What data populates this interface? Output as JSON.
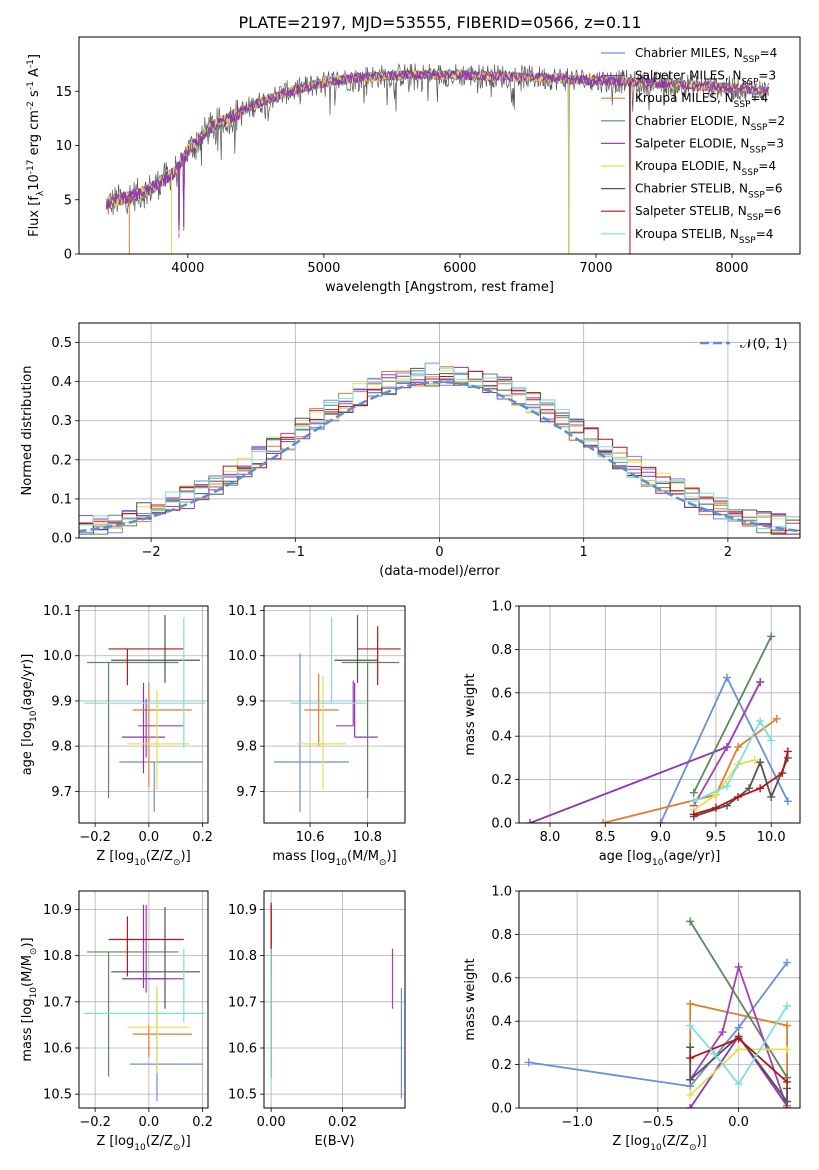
{
  "title": "PLATE=2197, MJD=53555, FIBERID=0566, z=0.11",
  "series": [
    {
      "name": "Chabrier MILES, N$_{SSP}$=4",
      "label_main": "Chabrier MILES, N",
      "label_sub": "SSP",
      "label_tail": "=4",
      "color": "#6b8fd8"
    },
    {
      "name": "Salpeter MILES, N$_{SSP}$=3",
      "label_main": "Salpeter MILES, N",
      "label_sub": "SSP",
      "label_tail": "=3",
      "color": "#8e35b5"
    },
    {
      "name": "Kroupa MILES, N$_{SSP}$=4",
      "label_main": "Kroupa MILES, N",
      "label_sub": "SSP",
      "label_tail": "=4",
      "color": "#e07e2e"
    },
    {
      "name": "Chabrier ELODIE, N$_{SSP}$=2",
      "label_main": "Chabrier ELODIE, N",
      "label_sub": "SSP",
      "label_tail": "=2",
      "color": "#5c8a5c"
    },
    {
      "name": "Salpeter ELODIE, N$_{SSP}$=3",
      "label_main": "Salpeter ELODIE, N",
      "label_sub": "SSP",
      "label_tail": "=3",
      "color": "#a33fb8"
    },
    {
      "name": "Kroupa ELODIE, N$_{SSP}$=4",
      "label_main": "Kroupa ELODIE, N",
      "label_sub": "SSP",
      "label_tail": "=4",
      "color": "#e0e050"
    },
    {
      "name": "Chabrier STELIB, N$_{SSP}$=6",
      "label_main": "Chabrier STELIB, N",
      "label_sub": "SSP",
      "label_tail": "=6",
      "color": "#555555"
    },
    {
      "name": "Salpeter STELIB, N$_{SSP}$=6",
      "label_main": "Salpeter STELIB, N",
      "label_sub": "SSP",
      "label_tail": "=6",
      "color": "#b81414"
    },
    {
      "name": "Kroupa STELIB, N$_{SSP}$=4",
      "label_main": "Kroupa STELIB, N",
      "label_sub": "SSP",
      "label_tail": "=4",
      "color": "#7fdede"
    }
  ],
  "chart_data": [
    {
      "type": "line",
      "panel": "spectrum",
      "xlabel": "wavelength [Angstrom, rest frame]",
      "ylabel": "Flux [f$_\\lambda$10$^{-17}$ erg cm$^{-2}$ s$^{-1}$ A$^{-1}$]",
      "xlim": [
        3200,
        8500
      ],
      "ylim": [
        0,
        20
      ],
      "xticks": [
        4000,
        5000,
        6000,
        7000,
        8000
      ],
      "yticks": [
        0,
        5,
        10,
        15
      ],
      "grid": false,
      "legend": "top-right",
      "continuum": {
        "x": [
          3400,
          3500,
          3700,
          3900,
          4000,
          4150,
          4300,
          4500,
          4700,
          4900,
          5100,
          5300,
          5600,
          6000,
          6500,
          7000,
          7500,
          8000,
          8270
        ],
        "y": [
          4.6,
          5.0,
          5.8,
          7.5,
          9.5,
          11.5,
          12.5,
          13.8,
          14.8,
          15.5,
          16.0,
          16.3,
          16.5,
          16.5,
          16.3,
          16.0,
          15.7,
          15.3,
          15.0
        ]
      },
      "absorption_dips": [
        {
          "x": 3934,
          "y": 1.5
        },
        {
          "x": 3969,
          "y": 2.0
        },
        {
          "x": 6800,
          "y": 0
        },
        {
          "x": 7250,
          "y": 0
        }
      ],
      "flux_sampling_step": 5
    },
    {
      "type": "bar",
      "panel": "residual_histogram",
      "xlabel": "(data-model)/error",
      "ylabel": "Normed distribution",
      "xlim": [
        -2.5,
        2.5
      ],
      "ylim": [
        0,
        0.55
      ],
      "xticks": [
        -2,
        -1,
        0,
        1,
        2
      ],
      "yticks": [
        0.0,
        0.1,
        0.2,
        0.3,
        0.4,
        0.5
      ],
      "grid": true,
      "bin_width": 0.1,
      "reference_curve": "$\\mathcal{N}(0,1)$",
      "reference_label": "𝒩(0, 1)",
      "reference_color": "#5b8ed6",
      "legend": "top-right"
    },
    {
      "type": "scatter",
      "panel": "age_vs_Z",
      "xlabel": "Z [log$_{10}$(Z/Z$_\\odot$)]",
      "ylabel": "age  [log$_{10}$(age/yr)]",
      "xlim": [
        -0.26,
        0.22
      ],
      "ylim": [
        9.63,
        10.11
      ],
      "xticks": [
        -0.2,
        0.0,
        0.2
      ],
      "yticks": [
        9.7,
        9.8,
        9.9,
        10.0,
        10.1
      ],
      "grid": true,
      "points": [
        {
          "x": 0.02,
          "y": 9.765,
          "xerr": [
            0.13,
            0.18
          ],
          "yerr": [
            0.11,
            0.0
          ]
        },
        {
          "x": -0.02,
          "y": 9.82,
          "xerr": [
            0.08,
            0.08
          ],
          "yerr": [
            0.08,
            0.12
          ]
        },
        {
          "x": 0.0,
          "y": 9.88,
          "xerr": [
            0.06,
            0.16
          ],
          "yerr": [
            0.17,
            0.06
          ]
        },
        {
          "x": -0.15,
          "y": 9.985,
          "xerr": [
            0.08,
            0.26
          ],
          "yerr": [
            0.3,
            0.0
          ]
        },
        {
          "x": -0.01,
          "y": 9.845,
          "xerr": [
            0.03,
            0.14
          ],
          "yerr": [
            0.07,
            0.06
          ]
        },
        {
          "x": 0.03,
          "y": 9.805,
          "xerr": [
            0.11,
            0.12
          ],
          "yerr": [
            0.1,
            0.12
          ]
        },
        {
          "x": 0.06,
          "y": 9.99,
          "xerr": [
            0.2,
            0.13
          ],
          "yerr": [
            0.05,
            0.1
          ]
        },
        {
          "x": -0.08,
          "y": 10.015,
          "xerr": [
            0.07,
            0.21
          ],
          "yerr": [
            0.08,
            0.0
          ]
        },
        {
          "x": 0.13,
          "y": 9.895,
          "xerr": [
            0.37,
            0.08
          ],
          "yerr": [
            0.1,
            0.19
          ]
        }
      ]
    },
    {
      "type": "scatter",
      "panel": "age_vs_mass",
      "xlabel": "mass [log$_{10}$(M/M$_\\odot$)]",
      "ylabel": "",
      "xlim": [
        10.44,
        10.93
      ],
      "ylim": [
        9.63,
        10.11
      ],
      "xticks": [
        10.6,
        10.8
      ],
      "yticks": [
        9.7,
        9.8,
        9.9,
        10.0,
        10.1
      ],
      "grid": true,
      "points": [
        {
          "x": 10.565,
          "y": 9.765,
          "xerr": [
            0.09,
            0.17
          ],
          "yerr": [
            0.11,
            0.24
          ]
        },
        {
          "x": 10.755,
          "y": 9.82,
          "xerr": [
            0.0,
            0.08
          ],
          "yerr": [
            0.0,
            0.12
          ]
        },
        {
          "x": 10.63,
          "y": 9.88,
          "xerr": [
            0.05,
            0.07
          ],
          "yerr": [
            0.08,
            0.08
          ]
        },
        {
          "x": 10.8,
          "y": 9.985,
          "xerr": [
            0.09,
            0.11
          ],
          "yerr": [
            0.3,
            0.0
          ]
        },
        {
          "x": 10.75,
          "y": 9.845,
          "xerr": [
            0.06,
            0.0
          ],
          "yerr": [
            0.0,
            0.1
          ]
        },
        {
          "x": 10.645,
          "y": 9.805,
          "xerr": [
            0.09,
            0.08
          ],
          "yerr": [
            0.1,
            0.15
          ]
        },
        {
          "x": 10.765,
          "y": 9.99,
          "xerr": [
            0.08,
            0.07
          ],
          "yerr": [
            0.05,
            0.1
          ]
        },
        {
          "x": 10.835,
          "y": 10.015,
          "xerr": [
            0.07,
            0.08
          ],
          "yerr": [
            0.08,
            0.05
          ]
        },
        {
          "x": 10.675,
          "y": 9.895,
          "xerr": [
            0.14,
            0.12
          ],
          "yerr": [
            0.0,
            0.19
          ]
        }
      ]
    },
    {
      "type": "line",
      "panel": "mass_weight_vs_age",
      "xlabel": "age  [log$_{10}$(age/yr)]",
      "ylabel": "mass weight",
      "xlim": [
        7.72,
        10.26
      ],
      "ylim": [
        0,
        1
      ],
      "xticks": [
        8.0,
        8.5,
        9.0,
        9.5,
        10.0
      ],
      "yticks": [
        0.0,
        0.2,
        0.4,
        0.6,
        0.8,
        1.0
      ],
      "grid": true,
      "series_points": [
        {
          "x": [
            9.0,
            9.6,
            10.15
          ],
          "y": [
            0.0,
            0.67,
            0.1
          ]
        },
        {
          "x": [
            7.82,
            9.6,
            9.9
          ],
          "y": [
            0.0,
            0.35,
            0.65
          ]
        },
        {
          "x": [
            8.48,
            9.5,
            9.7,
            10.05
          ],
          "y": [
            0.0,
            0.13,
            0.35,
            0.48
          ]
        },
        {
          "x": [
            9.3,
            10.0
          ],
          "y": [
            0.14,
            0.86
          ]
        },
        {
          "x": [
            9.3,
            9.6,
            9.9
          ],
          "y": [
            0.08,
            0.35,
            0.65
          ]
        },
        {
          "x": [
            9.3,
            9.5,
            9.7,
            9.85
          ],
          "y": [
            0.06,
            0.13,
            0.27,
            0.29
          ]
        },
        {
          "x": [
            9.3,
            9.6,
            9.8,
            9.9,
            10.0,
            10.15
          ],
          "y": [
            0.03,
            0.08,
            0.16,
            0.28,
            0.12,
            0.3
          ]
        },
        {
          "x": [
            9.3,
            9.5,
            9.7,
            9.9,
            10.1,
            10.15
          ],
          "y": [
            0.04,
            0.07,
            0.12,
            0.16,
            0.23,
            0.33
          ]
        },
        {
          "x": [
            9.3,
            9.6,
            9.9,
            10.0
          ],
          "y": [
            0.1,
            0.17,
            0.47,
            0.38
          ]
        }
      ]
    },
    {
      "type": "scatter",
      "panel": "mass_vs_Z",
      "xlabel": "Z [log$_{10}$(Z/Z$_\\odot$)]",
      "ylabel": "mass [log$_{10}$(M/M$_\\odot$)]",
      "xlim": [
        -0.26,
        0.22
      ],
      "ylim": [
        10.47,
        10.94
      ],
      "xticks": [
        -0.2,
        0.0,
        0.2
      ],
      "yticks": [
        10.5,
        10.6,
        10.7,
        10.8,
        10.9
      ],
      "grid": true,
      "points": [
        {
          "x": 0.03,
          "y": 10.565,
          "xerr": [
            0.1,
            0.17
          ],
          "yerr": [
            0.08,
            0.16
          ]
        },
        {
          "x": -0.02,
          "y": 10.75,
          "xerr": [
            0.08,
            0.08
          ],
          "yerr": [
            0.02,
            0.16
          ]
        },
        {
          "x": 0.0,
          "y": 10.63,
          "xerr": [
            0.06,
            0.16
          ],
          "yerr": [
            0.05,
            0.02
          ]
        },
        {
          "x": -0.15,
          "y": 10.808,
          "xerr": [
            0.08,
            0.26
          ],
          "yerr": [
            0.27,
            0.0
          ]
        },
        {
          "x": -0.01,
          "y": 10.75,
          "xerr": [
            0.03,
            0.14
          ],
          "yerr": [
            0.03,
            0.16
          ]
        },
        {
          "x": 0.03,
          "y": 10.645,
          "xerr": [
            0.11,
            0.12
          ],
          "yerr": [
            0.1,
            0.09
          ]
        },
        {
          "x": 0.06,
          "y": 10.765,
          "xerr": [
            0.2,
            0.13
          ],
          "yerr": [
            0.08,
            0.14
          ]
        },
        {
          "x": -0.08,
          "y": 10.835,
          "xerr": [
            0.07,
            0.21
          ],
          "yerr": [
            0.08,
            0.05
          ]
        },
        {
          "x": 0.13,
          "y": 10.675,
          "xerr": [
            0.37,
            0.08
          ],
          "yerr": [
            0.02,
            0.14
          ]
        }
      ]
    },
    {
      "type": "scatter",
      "panel": "mass_vs_EBV",
      "xlabel": "E(B-V)",
      "ylabel": "",
      "xlim": [
        -0.002,
        0.0375
      ],
      "ylim": [
        10.47,
        10.94
      ],
      "xticks": [
        0.0,
        0.02
      ],
      "yticks": [
        10.5,
        10.6,
        10.7,
        10.8,
        10.9
      ],
      "grid": true,
      "points": [
        {
          "x": 0.0365,
          "y": 10.6,
          "yerr": [
            0.11,
            0.13
          ]
        },
        {
          "x": 0.0,
          "y": 10.75,
          "yerr": [
            0.2,
            0.16
          ]
        },
        {
          "x": 0.0,
          "y": 10.75,
          "yerr": [
            0.2,
            0.16
          ]
        },
        {
          "x": 0.0,
          "y": 10.808,
          "yerr": [
            0.27,
            0.0
          ]
        },
        {
          "x": 0.034,
          "y": 10.745,
          "yerr": [
            0.06,
            0.07
          ]
        },
        {
          "x": 0.0,
          "y": 10.645,
          "yerr": [
            0.1,
            0.09
          ]
        },
        {
          "x": 0.0,
          "y": 10.765,
          "yerr": [
            0.23,
            0.14
          ]
        },
        {
          "x": 0.0,
          "y": 10.835,
          "yerr": [
            0.08,
            0.08
          ]
        },
        {
          "x": 0.0,
          "y": 10.675,
          "yerr": [
            0.15,
            0.14
          ]
        }
      ]
    },
    {
      "type": "line",
      "panel": "mass_weight_vs_Z",
      "xlabel": "Z [log$_{10}$(Z/Z$_\\odot$)]",
      "ylabel": "mass weight",
      "xlim": [
        -1.36,
        0.38
      ],
      "ylim": [
        0,
        1
      ],
      "xticks": [
        -1.0,
        -0.5,
        0.0
      ],
      "yticks": [
        0.0,
        0.2,
        0.4,
        0.6,
        0.8,
        1.0
      ],
      "grid": true,
      "series_points": [
        {
          "x": [
            -1.3,
            -0.3,
            0.0,
            0.3
          ],
          "y": [
            0.21,
            0.1,
            0.37,
            0.67
          ]
        },
        {
          "x": [
            -0.3,
            0.0,
            0.3
          ],
          "y": [
            0.0,
            0.33,
            0.01
          ]
        },
        {
          "x": [
            -0.3,
            -0.3,
            0.3,
            0.3
          ],
          "y": [
            0.13,
            0.48,
            0.38,
            0.01
          ]
        },
        {
          "x": [
            -0.3,
            0.3
          ],
          "y": [
            0.86,
            0.14
          ]
        },
        {
          "x": [
            -0.3,
            -0.1,
            0.0,
            0.3
          ],
          "y": [
            0.13,
            0.35,
            0.65,
            0.0
          ]
        },
        {
          "x": [
            -0.3,
            0.0,
            0.3
          ],
          "y": [
            0.06,
            0.27,
            0.27
          ]
        },
        {
          "x": [
            -0.3,
            -0.3,
            0.0,
            0.3,
            0.3
          ],
          "y": [
            0.28,
            0.13,
            0.33,
            0.03,
            0.09
          ]
        },
        {
          "x": [
            -0.3,
            0.0,
            0.3
          ],
          "y": [
            0.23,
            0.32,
            0.12
          ]
        },
        {
          "x": [
            -0.3,
            -0.15,
            0.0,
            0.3
          ],
          "y": [
            0.38,
            0.25,
            0.11,
            0.47
          ]
        }
      ]
    }
  ]
}
